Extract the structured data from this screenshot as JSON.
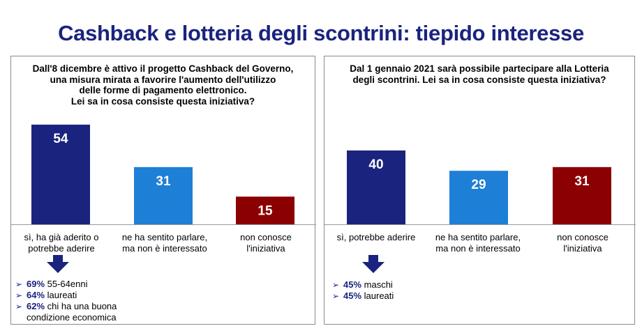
{
  "title": "Cashback e lotteria degli scontrini: tiepido interesse",
  "colors": {
    "dark_blue": "#1a237e",
    "light_blue": "#1e7fd6",
    "dark_red": "#8b0000",
    "title": "#1a237e"
  },
  "left_panel": {
    "question_lines": [
      "Dall'8 dicembre è attivo il progetto Cashback del Governo,",
      "una misura mirata a favorire l'aumento dell'utilizzo",
      "delle forme di pagamento elettronico.",
      "Lei sa in cosa consiste questa iniziativa?"
    ],
    "categories": [
      [
        "sì, ha già aderito o",
        "potrebbe aderire"
      ],
      [
        "ne ha sentito parlare,",
        "ma non è interessato"
      ],
      [
        "non conosce",
        "l'iniziativa"
      ]
    ],
    "notes": [
      {
        "pct": "69%",
        "text": " 55-64enni"
      },
      {
        "pct": "64%",
        "text": " laureati"
      },
      {
        "pct": "62%",
        "text": " chi ha una buona",
        "cont": "condizione economica"
      }
    ]
  },
  "right_panel": {
    "question_lines": [
      "Dal 1 gennaio 2021 sarà possibile partecipare alla Lotteria",
      "degli scontrini. Lei sa in cosa consiste questa iniziativa?"
    ],
    "categories": [
      [
        "sì, potrebbe aderire"
      ],
      [
        "ne ha sentito parlare,",
        "ma non è interessato"
      ],
      [
        "non conosce",
        "l'iniziativa"
      ]
    ],
    "notes": [
      {
        "pct": "45%",
        "text": " maschi"
      },
      {
        "pct": "45%",
        "text": " laureati"
      }
    ]
  },
  "chart_data": [
    {
      "type": "bar",
      "title": "Dall'8 dicembre è attivo il progetto Cashback del Governo, una misura mirata a favorire l'aumento dell'utilizzo delle forme di pagamento elettronico. Lei sa in cosa consiste questa iniziativa?",
      "categories": [
        "sì, ha già aderito o potrebbe aderire",
        "ne ha sentito parlare, ma non è interessato",
        "non conosce l'iniziativa"
      ],
      "values": [
        54,
        31,
        15
      ],
      "bar_colors": [
        "#1a237e",
        "#1e7fd6",
        "#8b0000"
      ],
      "ylim": [
        0,
        60
      ],
      "grid": false,
      "legend": "none"
    },
    {
      "type": "bar",
      "title": "Dal 1 gennaio 2021 sarà possibile partecipare alla Lotteria degli scontrini. Lei sa in cosa consiste questa iniziativa?",
      "categories": [
        "sì, potrebbe aderire",
        "ne ha sentito parlare, ma non è interessato",
        "non conosce l'iniziativa"
      ],
      "values": [
        40,
        29,
        31
      ],
      "bar_colors": [
        "#1a237e",
        "#1e7fd6",
        "#8b0000"
      ],
      "ylim": [
        0,
        60
      ],
      "grid": false,
      "legend": "none"
    }
  ]
}
